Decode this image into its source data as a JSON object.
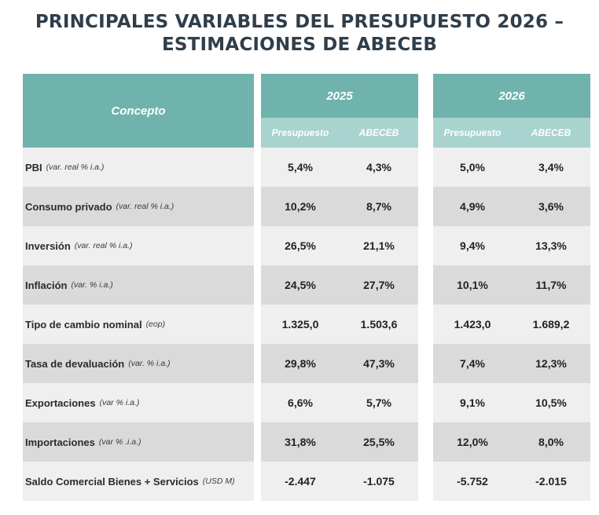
{
  "title": {
    "line1": "PRINCIPALES VARIABLES DEL PRESUPUESTO 2026 –",
    "line2": "ESTIMACIONES DE ABECEB"
  },
  "header": {
    "concept": "Concepto",
    "year_2025": "2025",
    "year_2026": "2026",
    "sub_presupuesto": "Presupuesto",
    "sub_abeceb": "ABECEB"
  },
  "rows": [
    {
      "label": "PBI",
      "note": "(var. real % i.a.)",
      "p2025": "5,4%",
      "a2025": "4,3%",
      "p2026": "5,0%",
      "a2026": "3,4%"
    },
    {
      "label": "Consumo privado",
      "note": "(var. real % i.a.)",
      "p2025": "10,2%",
      "a2025": "8,7%",
      "p2026": "4,9%",
      "a2026": "3,6%"
    },
    {
      "label": "Inversión",
      "note": "(var. real % i.a.)",
      "p2025": "26,5%",
      "a2025": "21,1%",
      "p2026": "9,4%",
      "a2026": "13,3%"
    },
    {
      "label": "Inflación",
      "note": "(var. % i.a.)",
      "p2025": "24,5%",
      "a2025": "27,7%",
      "p2026": "10,1%",
      "a2026": "11,7%"
    },
    {
      "label": "Tipo de cambio nominal",
      "note": "(eop)",
      "p2025": "1.325,0",
      "a2025": "1.503,6",
      "p2026": "1.423,0",
      "a2026": "1.689,2"
    },
    {
      "label": "Tasa de devaluación",
      "note": "(var. % i.a.)",
      "p2025": "29,8%",
      "a2025": "47,3%",
      "p2026": "7,4%",
      "a2026": "12,3%"
    },
    {
      "label": "Exportaciones",
      "note": "(var % i.a.)",
      "p2025": "6,6%",
      "a2025": "5,7%",
      "p2026": "9,1%",
      "a2026": "10,5%"
    },
    {
      "label": "Importaciones",
      "note": "(var % .i.a.)",
      "p2025": "31,8%",
      "a2025": "25,5%",
      "p2026": "12,0%",
      "a2026": "8,0%"
    },
    {
      "label": "Saldo Comercial Bienes + Servicios",
      "note": "(USD M)",
      "p2025": "-2.447",
      "a2025": "-1.075",
      "p2026": "-5.752",
      "a2026": "-2.015"
    }
  ]
}
